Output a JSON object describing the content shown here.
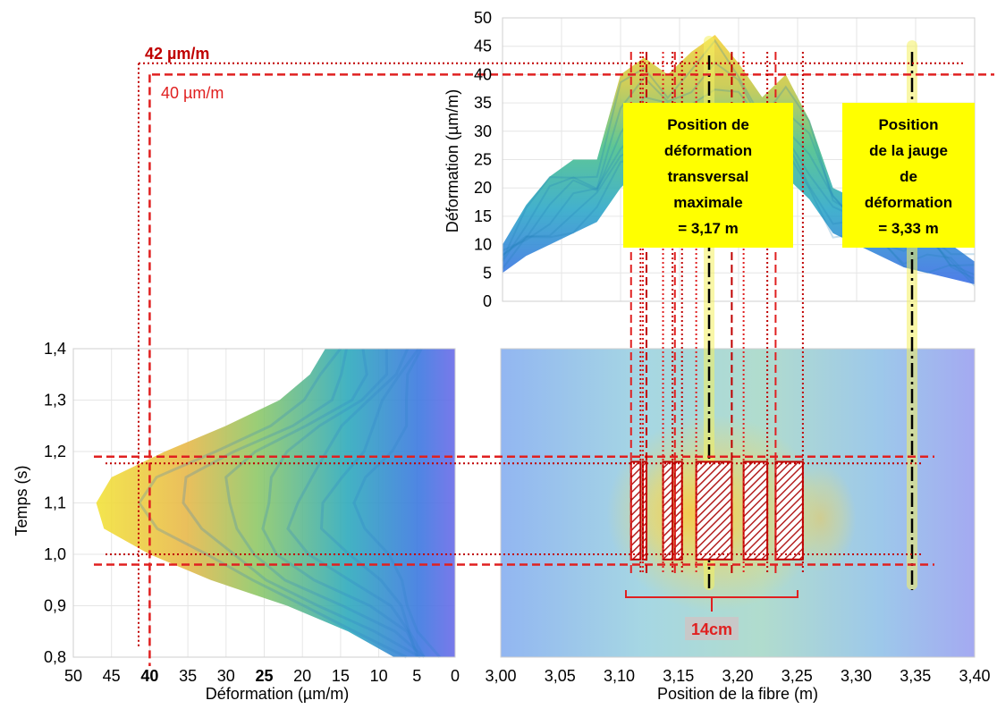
{
  "chart_data": [
    {
      "type": "area",
      "panel": "top",
      "ylabel": "Déformation (µm/m)",
      "xlim": [
        3.0,
        3.4
      ],
      "ylim": [
        0,
        50
      ],
      "yticks": [
        "0",
        "5",
        "10",
        "15",
        "20",
        "25",
        "30",
        "35",
        "40",
        "45",
        "50"
      ],
      "grid": true,
      "reference_lines": [
        {
          "label": "42 µm/m",
          "value": 42,
          "style": "dotted"
        },
        {
          "label": "40 µm/m",
          "value": 40,
          "style": "dashed"
        }
      ],
      "x": [
        3.0,
        3.02,
        3.04,
        3.06,
        3.08,
        3.1,
        3.12,
        3.14,
        3.16,
        3.18,
        3.2,
        3.22,
        3.24,
        3.26,
        3.28,
        3.3,
        3.32,
        3.34,
        3.36,
        3.38,
        3.4
      ],
      "upper": [
        10,
        17,
        22,
        25,
        25,
        40,
        43,
        40,
        44,
        47,
        42,
        36,
        40,
        32,
        20,
        18,
        17,
        15,
        15,
        10,
        7
      ],
      "lower": [
        5,
        8,
        10,
        12,
        14,
        20,
        24,
        25,
        26,
        27,
        26,
        24,
        22,
        18,
        12,
        10,
        8,
        6,
        5,
        4,
        3
      ],
      "annotations": [
        {
          "title": "Position de\ndéformation\ntransversal\nmaximale\n= 3,17 m",
          "x": 3.17
        },
        {
          "title": "Position\nde la jauge\nde\ndéformation\n= 3,33 m",
          "x": 3.33
        }
      ]
    },
    {
      "type": "area",
      "panel": "bottom-left",
      "xlabel": "Déformation  (µm/m)",
      "ylabel": "Temps (s)",
      "xlim": [
        50,
        0
      ],
      "ylim": [
        0.8,
        1.4
      ],
      "xticks": [
        "50",
        "45",
        "40",
        "35",
        "30",
        "25",
        "20",
        "15",
        "10",
        "5",
        "0"
      ],
      "yticks": [
        "0,8",
        "0,9",
        "1,0",
        "1,1",
        "1,2",
        "1,3",
        "1,4"
      ],
      "highlighted_xticks": {
        "40": "#e02020",
        "25": "#8c8c8c"
      },
      "t": [
        0.8,
        0.85,
        0.9,
        0.95,
        1.0,
        1.05,
        1.1,
        1.15,
        1.2,
        1.25,
        1.3,
        1.35,
        1.4
      ],
      "max_strain": [
        8,
        14,
        22,
        32,
        40,
        46,
        47,
        45,
        38,
        30,
        23,
        19,
        17
      ]
    },
    {
      "type": "heatmap",
      "panel": "bottom-right",
      "xlabel": "Position de la fibre (m)",
      "xlim": [
        3.0,
        3.4
      ],
      "ylim": [
        0.8,
        1.4
      ],
      "xticks": [
        "3,00",
        "3,05",
        "3,10",
        "3,15",
        "3,20",
        "3,25",
        "3,30",
        "3,35",
        "3,40"
      ],
      "time_window": [
        0.98,
        1.19
      ],
      "measure_label": "14cm",
      "segments": [
        [
          3.11,
          3.118
        ],
        [
          3.12,
          3.123
        ],
        [
          3.137,
          3.145
        ],
        [
          3.147,
          3.153
        ],
        [
          3.165,
          3.195
        ],
        [
          3.205,
          3.225
        ],
        [
          3.232,
          3.255
        ]
      ]
    }
  ]
}
